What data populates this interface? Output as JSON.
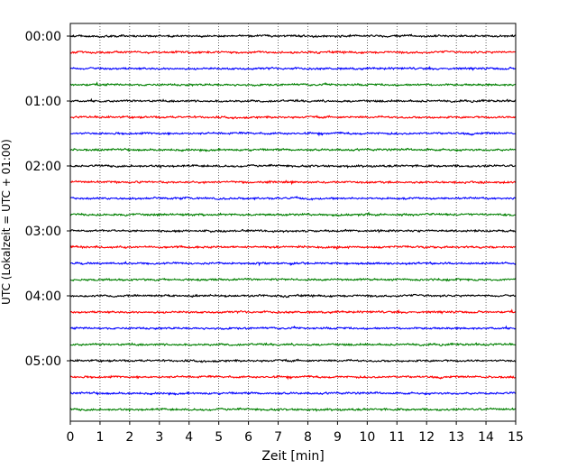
{
  "chart_data": {
    "type": "line",
    "title": "",
    "xlabel": "Zeit  [min]",
    "ylabel": "UTC (Lokalzeit = UTC + 01:00)",
    "xlim": [
      0,
      15
    ],
    "xticks": [
      0,
      1,
      2,
      3,
      4,
      5,
      6,
      7,
      8,
      9,
      10,
      11,
      12,
      13,
      14,
      15
    ],
    "ylim_minutes": [
      0,
      360
    ],
    "yticks": [
      "00:00",
      "01:00",
      "02:00",
      "03:00",
      "04:00",
      "05:00"
    ],
    "trace_interval_minutes": 15,
    "trace_start_times": [
      "00:00",
      "00:15",
      "00:30",
      "00:45",
      "01:00",
      "01:15",
      "01:30",
      "01:45",
      "02:00",
      "02:15",
      "02:30",
      "02:45",
      "03:00",
      "03:15",
      "03:30",
      "03:45",
      "04:00",
      "04:15",
      "04:30",
      "04:45",
      "05:00",
      "05:15",
      "05:30",
      "05:45"
    ],
    "trace_color_cycle": [
      "#000000",
      "#ff0000",
      "#0000ff",
      "#008000"
    ],
    "vertical_grid": "dotted at each minute",
    "legend": "none"
  }
}
